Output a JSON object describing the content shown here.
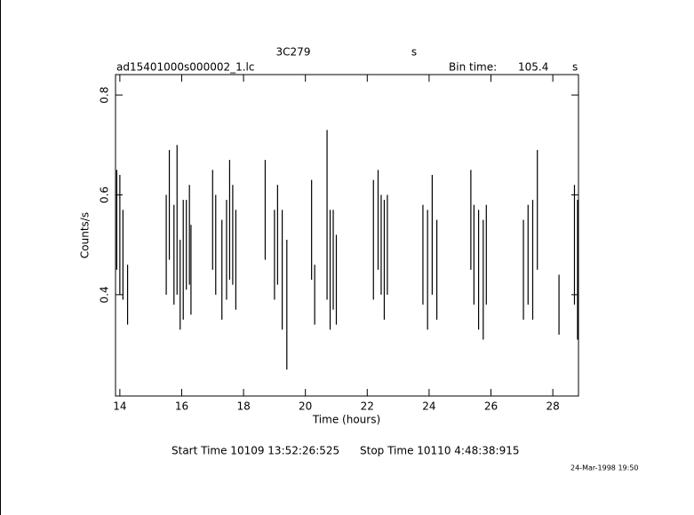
{
  "chart_data": {
    "type": "errorbar",
    "title": "3C279",
    "title_unit": "s",
    "subtitle": "ad15401000s000002_1.lc",
    "bin_time_label": "Bin time:",
    "bin_time": "105.4",
    "bin_time_unit": "s",
    "xlabel": "Time (hours)",
    "ylabel": "Counts/s",
    "start_time": "Start Time 10109 13:52:26:525",
    "stop_time": "Stop Time 10110  4:48:38:915",
    "footer_date": "24-Mar-1998 19:50",
    "color": "#000000",
    "x": [
      13.9,
      14.0,
      14.1,
      14.25,
      15.5,
      15.6,
      15.75,
      15.85,
      15.95,
      16.05,
      16.15,
      16.25,
      16.3,
      17.0,
      17.1,
      17.3,
      17.45,
      17.55,
      17.65,
      17.75,
      18.7,
      19.0,
      19.1,
      19.25,
      19.4,
      20.2,
      20.3,
      20.7,
      20.8,
      20.9,
      21.0,
      22.2,
      22.35,
      22.45,
      22.55,
      22.65,
      23.8,
      23.95,
      24.1,
      24.25,
      25.35,
      25.45,
      25.6,
      25.75,
      25.85,
      27.05,
      27.2,
      27.35,
      27.5,
      28.2,
      28.7,
      28.8
    ],
    "values": [
      0.55,
      0.52,
      0.48,
      0.4,
      0.5,
      0.58,
      0.48,
      0.55,
      0.42,
      0.47,
      0.5,
      0.52,
      0.45,
      0.55,
      0.5,
      0.45,
      0.49,
      0.55,
      0.52,
      0.47,
      0.57,
      0.48,
      0.52,
      0.45,
      0.38,
      0.53,
      0.4,
      0.56,
      0.45,
      0.47,
      0.43,
      0.51,
      0.55,
      0.5,
      0.47,
      0.5,
      0.48,
      0.45,
      0.52,
      0.45,
      0.55,
      0.48,
      0.45,
      0.43,
      0.48,
      0.45,
      0.48,
      0.47,
      0.57,
      0.38,
      0.5,
      0.45
    ],
    "errors": [
      0.1,
      0.12,
      0.09,
      0.06,
      0.1,
      0.11,
      0.1,
      0.15,
      0.09,
      0.12,
      0.09,
      0.1,
      0.09,
      0.1,
      0.1,
      0.1,
      0.1,
      0.12,
      0.1,
      0.1,
      0.1,
      0.09,
      0.1,
      0.12,
      0.13,
      0.1,
      0.06,
      0.17,
      0.12,
      0.1,
      0.09,
      0.12,
      0.1,
      0.1,
      0.12,
      0.1,
      0.1,
      0.12,
      0.12,
      0.1,
      0.1,
      0.1,
      0.12,
      0.12,
      0.1,
      0.1,
      0.1,
      0.12,
      0.12,
      0.06,
      0.12,
      0.14
    ],
    "xlim": [
      13.86,
      28.83
    ],
    "ylim": [
      0.197,
      0.841
    ],
    "xticks": [
      14,
      16,
      18,
      20,
      22,
      24,
      26,
      28
    ],
    "yticks": [
      0.4,
      0.6,
      0.8
    ]
  }
}
